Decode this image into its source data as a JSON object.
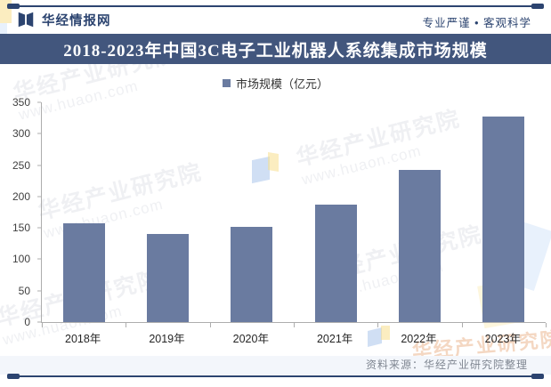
{
  "header": {
    "brand": "华经情报网",
    "slogan": "专业严谨 • 客观科学"
  },
  "title": "2018-2023年中国3C电子工业机器人系统集成市场规模",
  "legend": {
    "label": "市场规模（亿元）"
  },
  "chart_data": {
    "type": "bar",
    "title": "2018-2023年中国3C电子工业机器人系统集成市场规模",
    "categories": [
      "2018年",
      "2019年",
      "2020年",
      "2021年",
      "2022年",
      "2023年"
    ],
    "series": [
      {
        "name": "市场规模（亿元）",
        "values": [
          158,
          141,
          152,
          187,
          242,
          327
        ]
      }
    ],
    "ylim": [
      0,
      350
    ],
    "yticks": [
      0,
      50,
      100,
      150,
      200,
      250,
      300,
      350
    ],
    "xlabel": "",
    "ylabel": "",
    "grid": false,
    "legend_position": "top",
    "bar_color": "#6a7ba0"
  },
  "footer": {
    "source": "资料来源：华经产业研究院整理"
  },
  "watermarks": {
    "text_cn": "华经产业研究院",
    "text_url": "www.huaon.com"
  },
  "colors": {
    "navy": "#2c4470",
    "title_bar_bg": "#42567d",
    "bar": "#6a7ba0",
    "axis": "#adadad"
  }
}
